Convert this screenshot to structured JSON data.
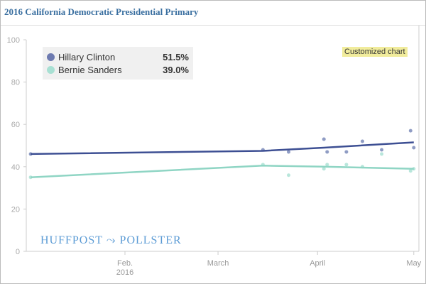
{
  "title": "2016 California Democratic Presidential Primary",
  "badge": "Customized chart",
  "logo": "HUFFPOST ⤳ POLLSTER",
  "chart_data": {
    "type": "line",
    "title": "2016 California Democratic Presidential Primary",
    "ylim": [
      0,
      100
    ],
    "yticks": [
      "0",
      "20",
      "40",
      "60",
      "80",
      "100"
    ],
    "xticks": [
      {
        "label": "Feb.",
        "sub": "2016",
        "day": 31
      },
      {
        "label": "March",
        "day": 60
      },
      {
        "label": "April",
        "day": 91
      },
      {
        "label": "May",
        "day": 121
      }
    ],
    "xlim_days": [
      1.6,
      121
    ],
    "legend": "top-left",
    "series": [
      {
        "name": "Hillary Clinton",
        "value_label": "51.5%",
        "color": "#3d4f93",
        "point_color": "#8f9cc4",
        "trend": [
          [
            1.6,
            46
          ],
          [
            74,
            47.5
          ],
          [
            93,
            49
          ],
          [
            121,
            51.5
          ]
        ],
        "points": [
          [
            1.6,
            46
          ],
          [
            74,
            48
          ],
          [
            82,
            47
          ],
          [
            93,
            53
          ],
          [
            94,
            47
          ],
          [
            100,
            47
          ],
          [
            105,
            52
          ],
          [
            111,
            48
          ],
          [
            120,
            57
          ],
          [
            121,
            49
          ]
        ]
      },
      {
        "name": "Bernie Sanders",
        "value_label": "39.0%",
        "color": "#8fd5c4",
        "point_color": "#b8e6db",
        "trend": [
          [
            1.6,
            35
          ],
          [
            74,
            40.5
          ],
          [
            93,
            40
          ],
          [
            121,
            39
          ]
        ],
        "points": [
          [
            1.6,
            35
          ],
          [
            74,
            41
          ],
          [
            82,
            36
          ],
          [
            93,
            39
          ],
          [
            94,
            41
          ],
          [
            100,
            41
          ],
          [
            105,
            40
          ],
          [
            111,
            46
          ],
          [
            120,
            38
          ],
          [
            121,
            39
          ]
        ]
      }
    ]
  }
}
